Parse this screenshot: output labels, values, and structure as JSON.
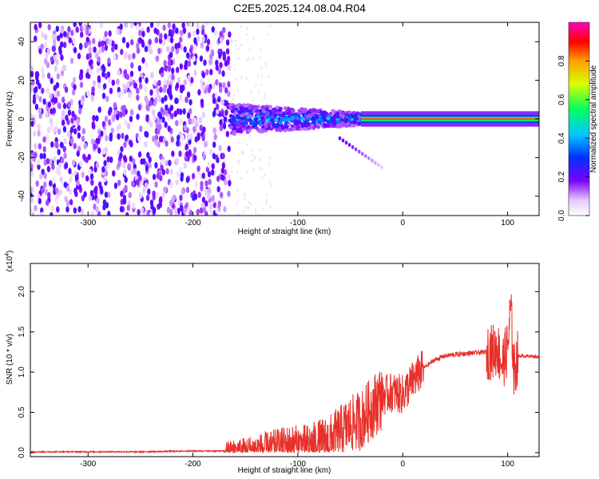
{
  "title": "C2E5.2025.124.08.04.R04",
  "chart_data": [
    {
      "type": "heatmap",
      "xlabel": "Height of straight line (km)",
      "ylabel": "Frequency (Hz)",
      "xlim": [
        -355,
        130
      ],
      "ylim": [
        -50,
        50
      ],
      "xticks": [
        -300,
        -200,
        -100,
        0,
        100
      ],
      "yticks": [
        -40,
        -20,
        0,
        20,
        40
      ],
      "colorbar": {
        "label": "Normalized spectral amplitude",
        "range": [
          0,
          1
        ],
        "ticks": [
          0.0,
          0.2,
          0.4,
          0.6,
          0.8
        ],
        "tick_labels": [
          "0.0",
          "0.2",
          "0.4",
          "0.6",
          "0.8"
        ]
      },
      "features": [
        {
          "region": "noise",
          "x": [
            -355,
            -165
          ],
          "y": [
            -50,
            50
          ],
          "amplitude": 0.15
        },
        {
          "region": "signal-band",
          "x": [
            -165,
            -40
          ],
          "y": [
            -8,
            8
          ],
          "amplitude": 0.35
        },
        {
          "region": "carrier",
          "x": [
            -40,
            130
          ],
          "y": [
            -1,
            1
          ],
          "amplitude": 0.85
        },
        {
          "region": "descending-branch",
          "x": [
            -60,
            -20
          ],
          "y": [
            -10,
            -25
          ],
          "amplitude": 0.2
        }
      ]
    },
    {
      "type": "line",
      "ylabel": "SNR (10 * v/v)",
      "xlabel": "Height of straight line (km)",
      "y_multiplier_label": "(x10",
      "y_multiplier_exp": "4",
      "xlim": [
        -355,
        130
      ],
      "ylim": [
        -0.05,
        2.35
      ],
      "xticks": [
        -300,
        -200,
        -100,
        0,
        100
      ],
      "yticks": [
        0.0,
        0.5,
        1.0,
        1.5,
        2.0
      ],
      "ytick_labels": [
        "0.0",
        "0.5",
        "1.0",
        "1.5",
        "2.0"
      ],
      "series": [
        {
          "color": "#e8302a",
          "x": [
            -355,
            -300,
            -250,
            -200,
            -170,
            -150,
            -130,
            -110,
            -90,
            -70,
            -60,
            -50,
            -40,
            -30,
            -20,
            -10,
            0,
            10,
            20,
            30,
            40,
            50,
            60,
            70,
            80,
            85,
            90,
            95,
            100,
            103,
            106,
            110,
            120,
            130
          ],
          "y": [
            0.01,
            0.01,
            0.01,
            0.02,
            0.02,
            0.04,
            0.06,
            0.1,
            0.08,
            0.15,
            0.25,
            0.35,
            0.4,
            0.55,
            0.7,
            0.75,
            0.72,
            0.9,
            1.05,
            1.15,
            1.2,
            1.22,
            1.23,
            1.24,
            1.25,
            1.25,
            1.3,
            1.1,
            1.3,
            1.8,
            1.0,
            1.2,
            1.2,
            1.19
          ]
        }
      ]
    }
  ]
}
